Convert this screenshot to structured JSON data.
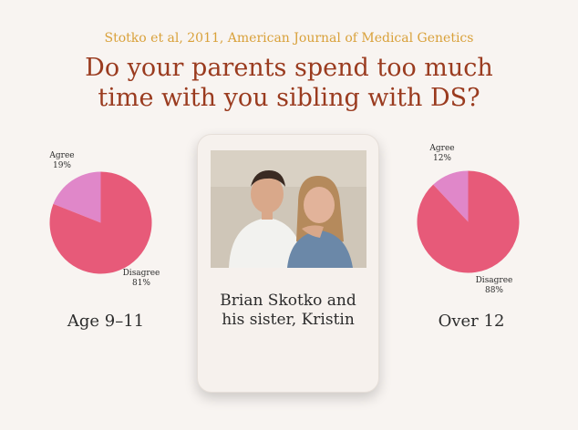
{
  "header": {
    "source": "Stotko et al, 2011, American Journal of Medical Genetics",
    "title_line1": "Do your parents spend too much",
    "title_line2": "time with you sibling with DS?"
  },
  "card": {
    "caption_line1": "Brian Skotko and",
    "caption_line2": "his sister, Kristin"
  },
  "chart_data": [
    {
      "type": "pie",
      "caption": "Age 9–11",
      "slices": [
        {
          "label": "Agree",
          "value": 19,
          "value_label": "19%",
          "color": "#e087c9"
        },
        {
          "label": "Disagree",
          "value": 81,
          "value_label": "81%",
          "color": "#e75a79"
        }
      ]
    },
    {
      "type": "pie",
      "caption": "Over 12",
      "slices": [
        {
          "label": "Agree",
          "value": 12,
          "value_label": "12%",
          "color": "#e087c9"
        },
        {
          "label": "Disagree",
          "value": 88,
          "value_label": "88%",
          "color": "#e75a79"
        }
      ]
    }
  ]
}
